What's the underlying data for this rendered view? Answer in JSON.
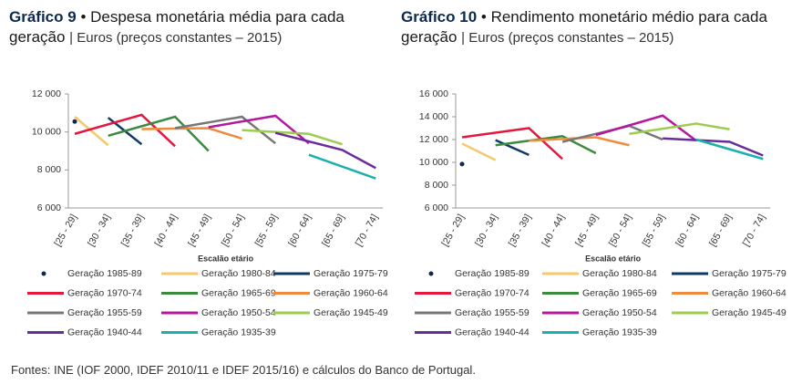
{
  "charts": [
    {
      "chart_data": {
        "type": "line",
        "label": "Gráfico 9",
        "title": "• Despesa monetária média para cada geração",
        "subtitle": "| Euros (preços constantes – 2015)",
        "x_label": "Escalão etário",
        "categories": [
          "[25 - 29]",
          "[30 - 34]",
          "[35 - 39]",
          "[40 - 44]",
          "[45 - 49]",
          "[50 - 54]",
          "[55 - 59]",
          "[60 - 64]",
          "[65 - 69]",
          "[70 - 74]"
        ],
        "ylim": [
          6000,
          12000
        ],
        "yticks": [
          {
            "value": 6000,
            "label": "6 000"
          },
          {
            "value": 8000,
            "label": "8 000"
          },
          {
            "value": 10000,
            "label": "10 000"
          },
          {
            "value": 12000,
            "label": "12 000"
          }
        ],
        "series": [
          {
            "name": "Geração 1985-89",
            "color": "#10294f",
            "x": [
              "[25 - 29]"
            ],
            "values": [
              10550
            ]
          },
          {
            "name": "Geração 1980-84",
            "color": "#f6c86c",
            "x": [
              "[25 - 29]",
              "[30 - 34]"
            ],
            "values": [
              10800,
              9300
            ]
          },
          {
            "name": "Geração 1975-79",
            "color": "#0d3a66",
            "x": [
              "[30 - 34]",
              "[35 - 39]"
            ],
            "values": [
              10750,
              9350
            ]
          },
          {
            "name": "Geração 1970-74",
            "color": "#e5173f",
            "x": [
              "[25 - 29]",
              "[35 - 39]",
              "[40 - 44]"
            ],
            "values": [
              9900,
              10900,
              9250
            ]
          },
          {
            "name": "Geração 1965-69",
            "color": "#3a8a3f",
            "x": [
              "[30 - 34]",
              "[40 - 44]",
              "[45 - 49]"
            ],
            "values": [
              9800,
              10800,
              9000
            ]
          },
          {
            "name": "Geração 1960-64",
            "color": "#f08a3c",
            "x": [
              "[35 - 39]",
              "[45 - 49]",
              "[50 - 54]"
            ],
            "values": [
              10150,
              10200,
              9650
            ]
          },
          {
            "name": "Geração 1955-59",
            "color": "#777777",
            "x": [
              "[40 - 44]",
              "[50 - 54]",
              "[55 - 59]"
            ],
            "values": [
              10200,
              10800,
              9400
            ]
          },
          {
            "name": "Geração 1950-54",
            "color": "#b5179e",
            "x": [
              "[45 - 49]",
              "[55 - 59]",
              "[60 - 64]"
            ],
            "values": [
              10250,
              10850,
              9400
            ]
          },
          {
            "name": "Geração 1945-49",
            "color": "#9ccd50",
            "x": [
              "[50 - 54]",
              "[60 - 64]",
              "[65 - 69]"
            ],
            "values": [
              10100,
              9900,
              9350
            ]
          },
          {
            "name": "Geração 1940-44",
            "color": "#6a2c9a",
            "x": [
              "[55 - 59]",
              "[65 - 69]",
              "[70 - 74]"
            ],
            "values": [
              9950,
              9050,
              8100
            ]
          },
          {
            "name": "Geração 1935-39",
            "color": "#1ab0b0",
            "x": [
              "[60 - 64]",
              "[70 - 74]"
            ],
            "values": [
              8800,
              7550
            ]
          }
        ]
      }
    },
    {
      "chart_data": {
        "type": "line",
        "label": "Gráfico 10",
        "title": "• Rendimento monetário médio para cada geração",
        "subtitle": "| Euros (preços constantes – 2015)",
        "x_label": "Escalão etário",
        "categories": [
          "[25 - 29]",
          "[30 - 34]",
          "[35 - 39]",
          "[40 - 44]",
          "[45 - 49]",
          "[50 - 54]",
          "[55 - 59]",
          "[60 - 64]",
          "[65 - 69]",
          "[70 - 74]"
        ],
        "ylim": [
          6000,
          16000
        ],
        "yticks": [
          {
            "value": 6000,
            "label": "6 000"
          },
          {
            "value": 8000,
            "label": "8 000"
          },
          {
            "value": 10000,
            "label": "10 000"
          },
          {
            "value": 12000,
            "label": "12 000"
          },
          {
            "value": 14000,
            "label": "14 000"
          },
          {
            "value": 16000,
            "label": "16 000"
          }
        ],
        "series": [
          {
            "name": "Geração 1985-89",
            "color": "#10294f",
            "x": [
              "[25 - 29]"
            ],
            "values": [
              9850
            ]
          },
          {
            "name": "Geração 1980-84",
            "color": "#f6c86c",
            "x": [
              "[25 - 29]",
              "[30 - 34]"
            ],
            "values": [
              11650,
              10200
            ]
          },
          {
            "name": "Geração 1975-79",
            "color": "#0d3a66",
            "x": [
              "[30 - 34]",
              "[35 - 39]"
            ],
            "values": [
              11950,
              10650
            ]
          },
          {
            "name": "Geração 1970-74",
            "color": "#e5173f",
            "x": [
              "[25 - 29]",
              "[35 - 39]",
              "[40 - 44]"
            ],
            "values": [
              12200,
              13000,
              10300
            ]
          },
          {
            "name": "Geração 1965-69",
            "color": "#3a8a3f",
            "x": [
              "[30 - 34]",
              "[40 - 44]",
              "[45 - 49]"
            ],
            "values": [
              11500,
              12300,
              10800
            ]
          },
          {
            "name": "Geração 1960-64",
            "color": "#f08a3c",
            "x": [
              "[35 - 39]",
              "[45 - 49]",
              "[50 - 54]"
            ],
            "values": [
              11900,
              12200,
              11500
            ]
          },
          {
            "name": "Geração 1955-59",
            "color": "#777777",
            "x": [
              "[40 - 44]",
              "[50 - 54]",
              "[55 - 59]"
            ],
            "values": [
              11800,
              13200,
              12000
            ]
          },
          {
            "name": "Geração 1950-54",
            "color": "#b5179e",
            "x": [
              "[45 - 49]",
              "[55 - 59]",
              "[60 - 64]"
            ],
            "values": [
              12400,
              14100,
              11900
            ]
          },
          {
            "name": "Geração 1945-49",
            "color": "#9ccd50",
            "x": [
              "[50 - 54]",
              "[60 - 64]",
              "[65 - 69]"
            ],
            "values": [
              12500,
              13400,
              12900
            ]
          },
          {
            "name": "Geração 1940-44",
            "color": "#6a2c9a",
            "x": [
              "[55 - 59]",
              "[65 - 69]",
              "[70 - 74]"
            ],
            "values": [
              12100,
              11800,
              10600
            ]
          },
          {
            "name": "Geração 1935-39",
            "color": "#1ab0b0",
            "x": [
              "[60 - 64]",
              "[70 - 74]"
            ],
            "values": [
              12000,
              10300
            ]
          }
        ]
      }
    }
  ],
  "source": "Fontes: INE (IOF 2000, IDEF 2010/11 e IDEF 2015/16) e cálculos do Banco de Portugal."
}
